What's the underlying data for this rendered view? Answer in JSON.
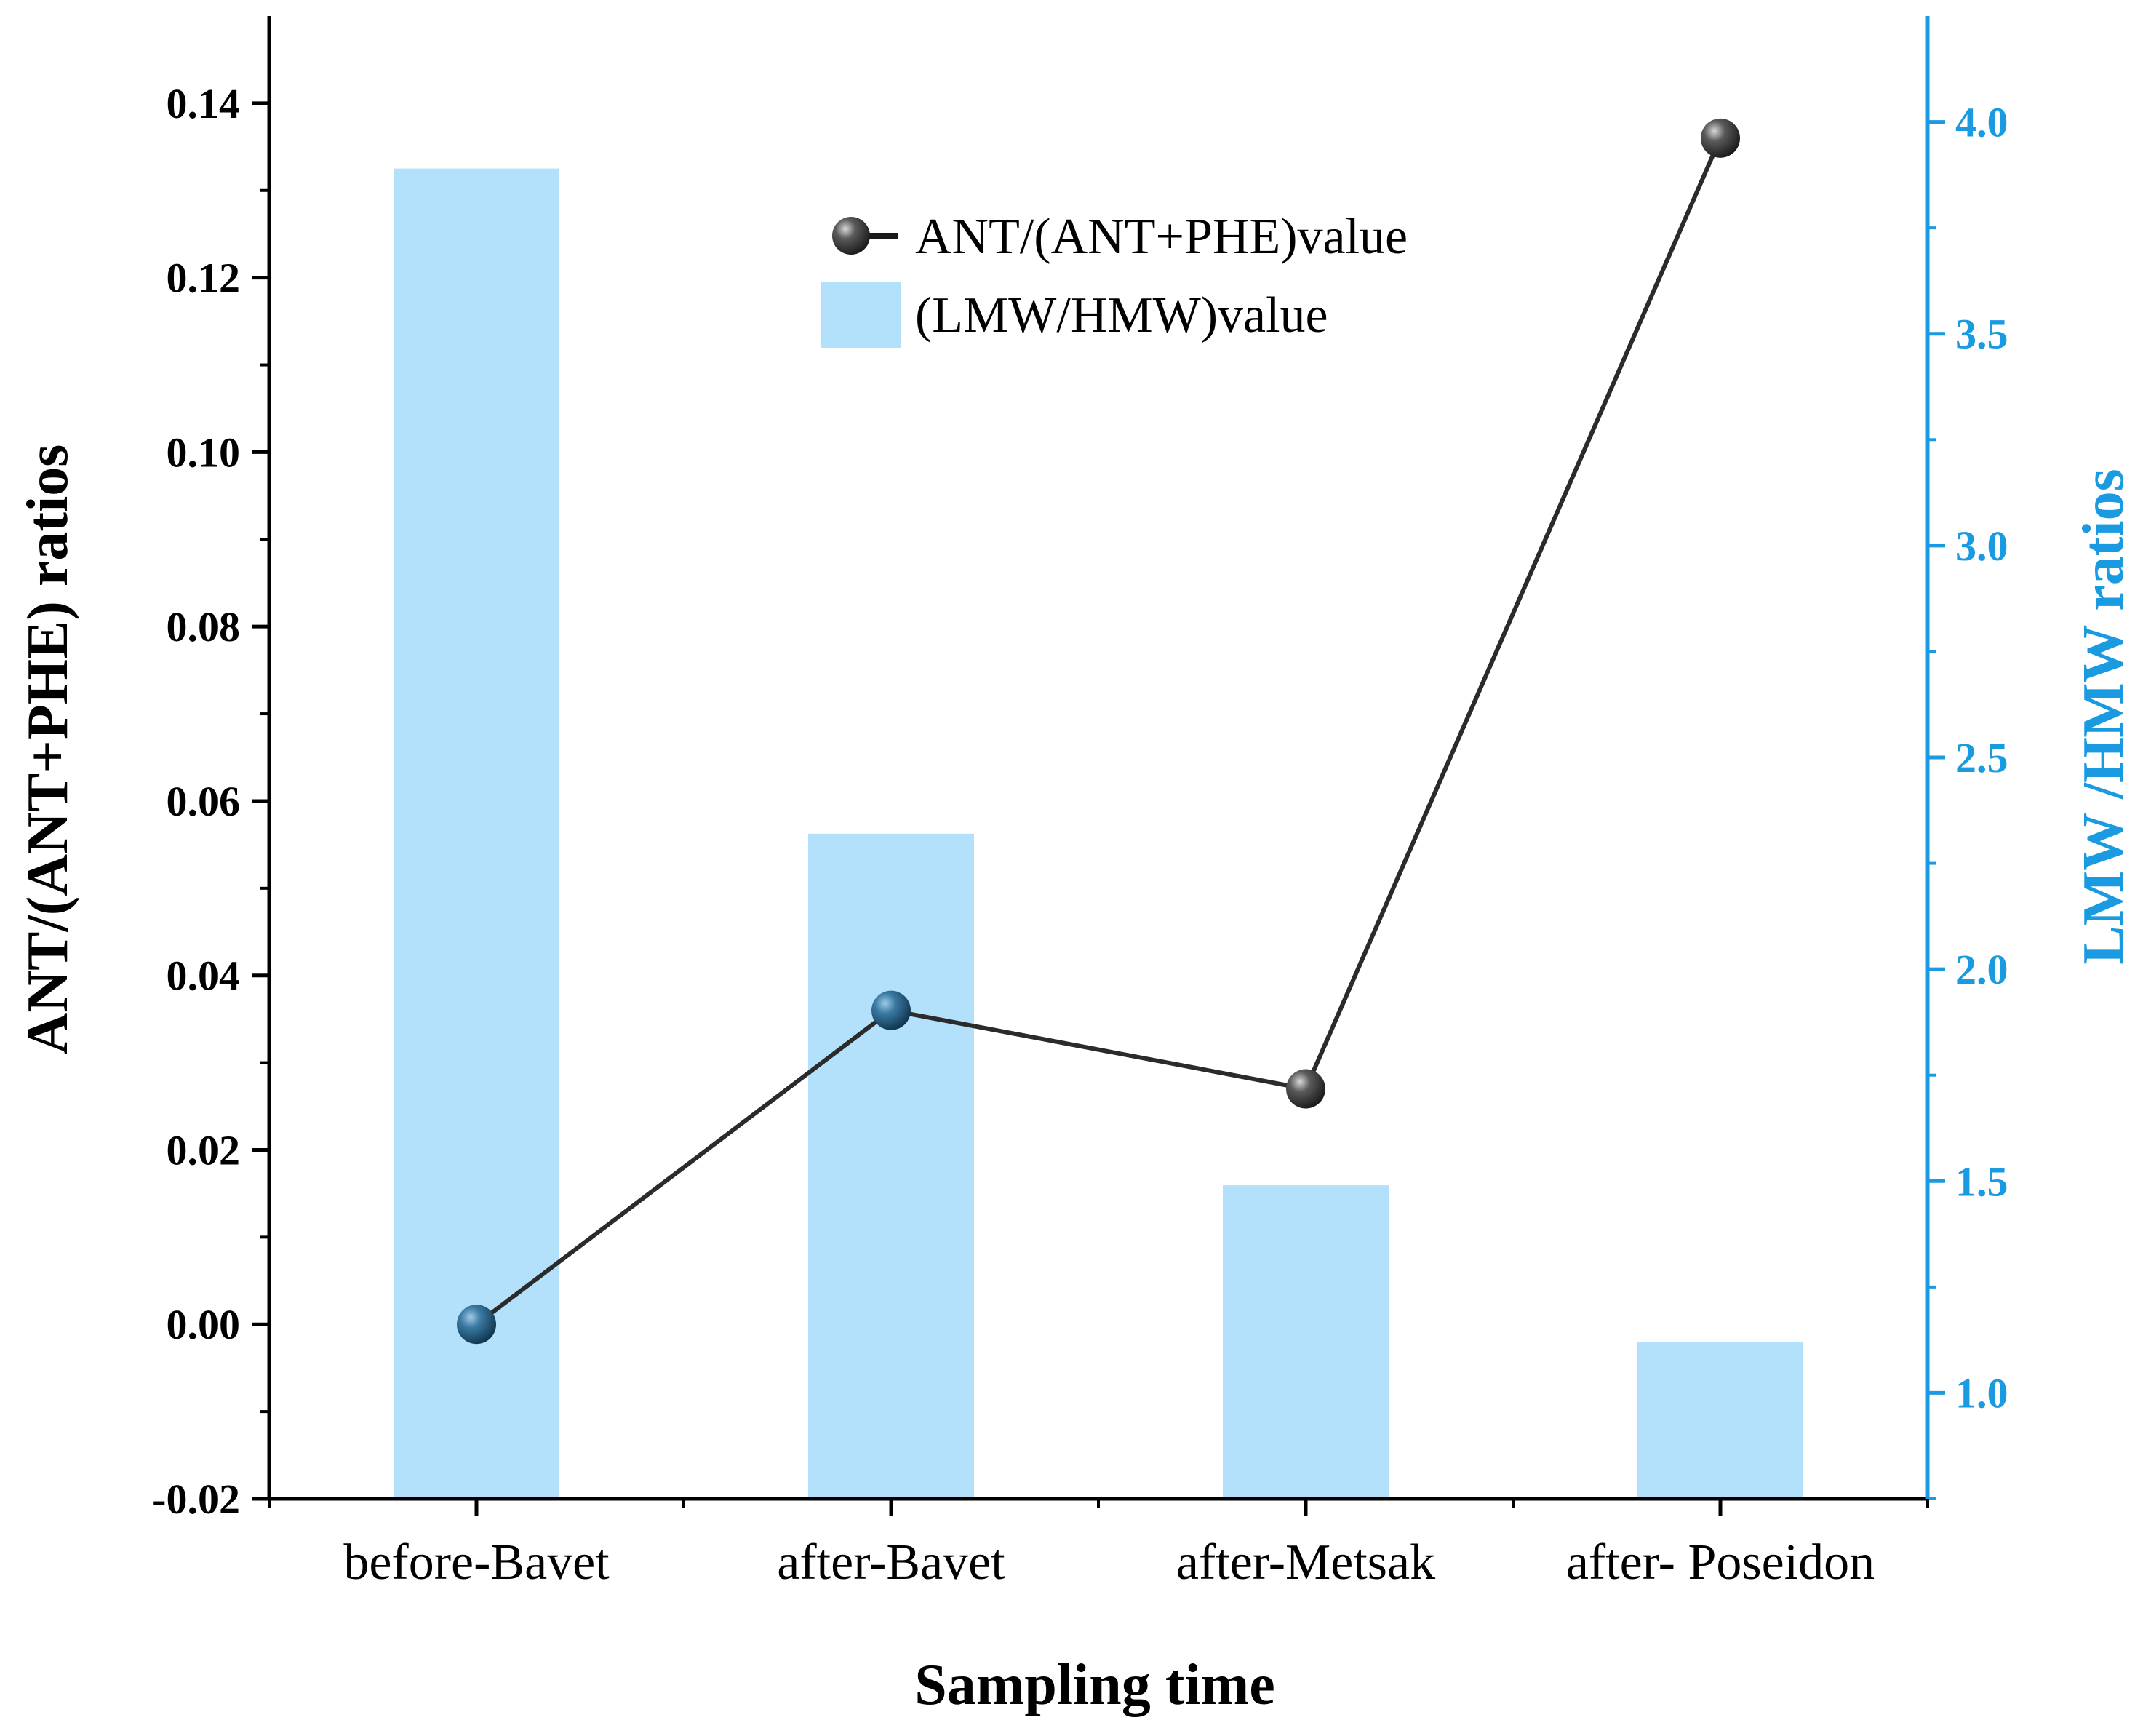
{
  "chart_data": {
    "type": "bar+line",
    "categories": [
      "before-Bavet",
      "after-Bavet",
      "after-Metsak",
      "after- Poseidon"
    ],
    "xlabel": "Sampling time",
    "series": [
      {
        "name": "ANT/(ANT+PHE)value",
        "type": "line",
        "axis": "left",
        "values": [
          0.0,
          0.036,
          0.027,
          0.136
        ],
        "line_color": "#2b2b2b",
        "marker_colors": [
          "#1f4e6e",
          "#1f4e6e",
          "#333333",
          "#333333"
        ]
      },
      {
        "name": "(LMW/HMW)value",
        "type": "bar",
        "axis": "right",
        "values": [
          3.89,
          2.32,
          1.49,
          1.12
        ],
        "color": "#b3e0fb"
      }
    ],
    "left_axis": {
      "label": "ANT/(ANT+PHE) ratios",
      "min": -0.02,
      "max": 0.15,
      "ticks": [
        -0.02,
        0.0,
        0.02,
        0.04,
        0.06,
        0.08,
        0.1,
        0.12,
        0.14
      ],
      "tick_labels": [
        "-0.02",
        "0.00",
        "0.02",
        "0.04",
        "0.06",
        "0.08",
        "0.10",
        "0.12",
        "0.14"
      ],
      "color": "#000000"
    },
    "right_axis": {
      "label": "LMW /HMW ratios",
      "min": 0.75,
      "max": 4.25,
      "ticks": [
        1.0,
        1.5,
        2.0,
        2.5,
        3.0,
        3.5,
        4.0
      ],
      "tick_labels": [
        "1.0",
        "1.5",
        "2.0",
        "2.5",
        "3.0",
        "3.5",
        "4.0"
      ],
      "color": "#1a9ae0"
    },
    "legend": {
      "position": "top-center",
      "entries": [
        "ANT/(ANT+PHE)value",
        "(LMW/HMW)value"
      ]
    }
  }
}
